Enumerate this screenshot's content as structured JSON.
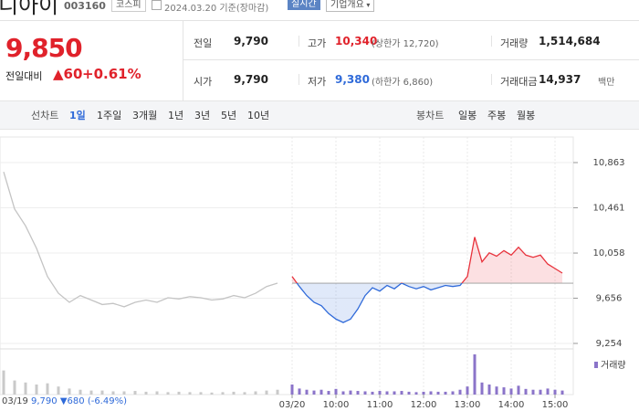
{
  "header": {
    "name": "디아이",
    "code": "003160",
    "market": "코스피",
    "date": "2024.03.20 기준(장마감)",
    "realtime": "실시간",
    "company": "기업개요"
  },
  "price": {
    "current": "9,850",
    "change_label": "전일대비",
    "change": "▲60",
    "rate": "+0.61%"
  },
  "stats": [
    [
      {
        "label": "전일",
        "value": "9,790"
      },
      {
        "label": "고가",
        "value": "10,340",
        "note": "(상한가 12,720)"
      },
      {
        "label": "거래량",
        "value": "1,514,684"
      }
    ],
    [
      {
        "label": "시가",
        "value": "9,790"
      },
      {
        "label": "저가",
        "value": "9,380",
        "note": "(하한가 6,860)"
      },
      {
        "label": "거래대금",
        "value": "14,937",
        "note": "백만"
      }
    ]
  ],
  "tabs": {
    "line_label": "선차트",
    "line": [
      "1일",
      "1주일",
      "3개월",
      "1년",
      "3년",
      "5년",
      "10년"
    ],
    "candle_label": "봉차트",
    "candle": [
      "일봉",
      "주봉",
      "월봉"
    ]
  },
  "footer": {
    "price": "9,790",
    "change": "▼680",
    "rate": "(-6.49%)"
  },
  "chart_data": {
    "type": "line",
    "grid": true,
    "xlim": [
      -400,
      385
    ],
    "xticks": [
      {
        "value": 0,
        "label": "03/20"
      },
      {
        "value": 60,
        "label": "10:00"
      },
      {
        "value": 120,
        "label": "11:00"
      },
      {
        "value": 180,
        "label": "12:00"
      },
      {
        "value": 240,
        "label": "13:00"
      },
      {
        "value": 300,
        "label": "14:00"
      },
      {
        "value": 360,
        "label": "15:00"
      }
    ],
    "ylim": [
      9254,
      10863
    ],
    "yticks": [
      {
        "value": 9254,
        "label": "9,254"
      },
      {
        "value": 9656,
        "label": "9,656"
      },
      {
        "value": 10058,
        "label": "10,058"
      },
      {
        "value": 10461,
        "label": "10,461"
      },
      {
        "value": 10863,
        "label": "10,863"
      }
    ],
    "baseline": 9790,
    "volume_label": "거래량",
    "volume_ylim": [
      0,
      100
    ],
    "series": [
      {
        "name": "03/19",
        "color": "#c4c4c4",
        "volume_color": "#c9c9c9",
        "x": [
          -395,
          -380,
          -365,
          -350,
          -335,
          -320,
          -305,
          -290,
          -275,
          -260,
          -245,
          -230,
          -215,
          -200,
          -185,
          -170,
          -155,
          -140,
          -125,
          -110,
          -95,
          -80,
          -65,
          -50,
          -35,
          -20
        ],
        "values": [
          10780,
          10450,
          10300,
          10100,
          9850,
          9700,
          9620,
          9680,
          9640,
          9600,
          9610,
          9580,
          9620,
          9640,
          9620,
          9660,
          9650,
          9670,
          9660,
          9640,
          9650,
          9680,
          9660,
          9700,
          9760,
          9790
        ],
        "volume": [
          60,
          35,
          30,
          25,
          28,
          20,
          15,
          12,
          10,
          10,
          8,
          8,
          9,
          7,
          8,
          6,
          7,
          6,
          6,
          5,
          6,
          7,
          6,
          8,
          10,
          12
        ]
      },
      {
        "up_color": "#e8323c",
        "down_color": "#2f6ad9",
        "volume_color": "#8b74c9",
        "x": [
          0,
          10,
          20,
          30,
          40,
          50,
          60,
          70,
          80,
          90,
          100,
          110,
          120,
          130,
          140,
          150,
          160,
          170,
          180,
          190,
          200,
          210,
          220,
          230,
          240,
          250,
          260,
          270,
          280,
          290,
          300,
          310,
          320,
          330,
          340,
          350,
          360,
          370
        ],
        "values": [
          9850,
          9760,
          9680,
          9620,
          9590,
          9520,
          9470,
          9440,
          9470,
          9560,
          9680,
          9750,
          9720,
          9770,
          9740,
          9790,
          9760,
          9740,
          9760,
          9730,
          9750,
          9770,
          9760,
          9770,
          9850,
          10200,
          9980,
          10060,
          10030,
          10080,
          10040,
          10110,
          10040,
          10020,
          10040,
          9960,
          9920,
          9880
        ],
        "volume": [
          25,
          15,
          12,
          10,
          12,
          9,
          14,
          8,
          10,
          9,
          8,
          7,
          9,
          8,
          8,
          9,
          7,
          6,
          7,
          8,
          7,
          7,
          8,
          12,
          20,
          100,
          30,
          25,
          20,
          18,
          15,
          22,
          14,
          12,
          12,
          15,
          12,
          10
        ]
      }
    ]
  }
}
